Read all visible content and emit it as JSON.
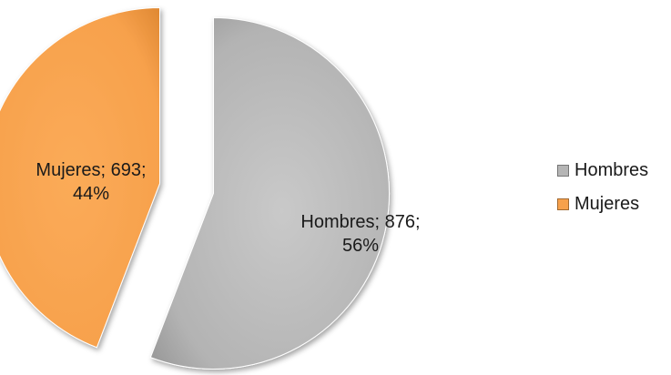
{
  "chart_data": {
    "type": "pie",
    "style": "exploded-3d",
    "slices": [
      {
        "name": "Hombres",
        "value": 876,
        "percent": 56,
        "color": "#b5b5b5",
        "label": "Hombres; 876;",
        "label_pct": "56%"
      },
      {
        "name": "Mujeres",
        "value": 693,
        "percent": 44,
        "color": "#f7a14c",
        "label": "Mujeres; 693;",
        "label_pct": "44%"
      }
    ],
    "legend": {
      "position": "right",
      "items": [
        {
          "name": "Hombres",
          "color": "#b5b5b5"
        },
        {
          "name": "Mujeres",
          "color": "#f7a14c"
        }
      ]
    }
  }
}
